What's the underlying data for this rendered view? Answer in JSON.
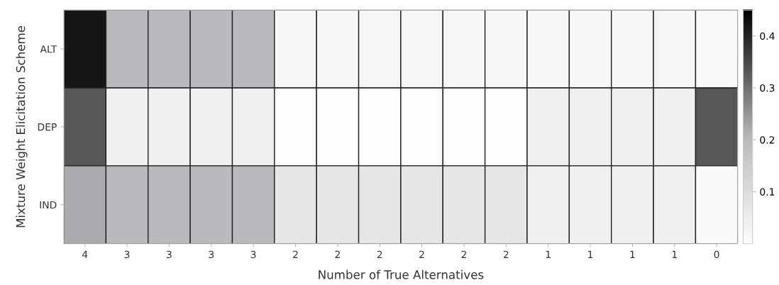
{
  "chart_data": {
    "type": "heatmap",
    "xlabel": "Number of True Alternatives",
    "ylabel": "Mixture Weight Elicitation Scheme",
    "categories": [
      "4",
      "3",
      "3",
      "3",
      "3",
      "2",
      "2",
      "2",
      "2",
      "2",
      "2",
      "1",
      "1",
      "1",
      "1",
      "0"
    ],
    "y_categories": [
      "ALT",
      "DEP",
      "IND"
    ],
    "cells": [
      [
        0.42,
        0.2,
        0.2,
        0.2,
        0.2,
        0.02,
        0.02,
        0.02,
        0.02,
        0.02,
        0.02,
        0.02,
        0.02,
        0.02,
        0.02,
        0.01
      ],
      [
        0.33,
        0.04,
        0.04,
        0.04,
        0.04,
        0.0,
        0.0,
        0.0,
        0.0,
        0.0,
        0.0,
        0.04,
        0.04,
        0.04,
        0.04,
        0.33
      ],
      [
        0.22,
        0.2,
        0.2,
        0.2,
        0.2,
        0.07,
        0.07,
        0.07,
        0.07,
        0.07,
        0.07,
        0.04,
        0.04,
        0.04,
        0.04,
        0.01
      ]
    ],
    "clim": [
      0,
      0.45
    ],
    "cticks": [
      0.1,
      0.2,
      0.3,
      0.4
    ]
  }
}
